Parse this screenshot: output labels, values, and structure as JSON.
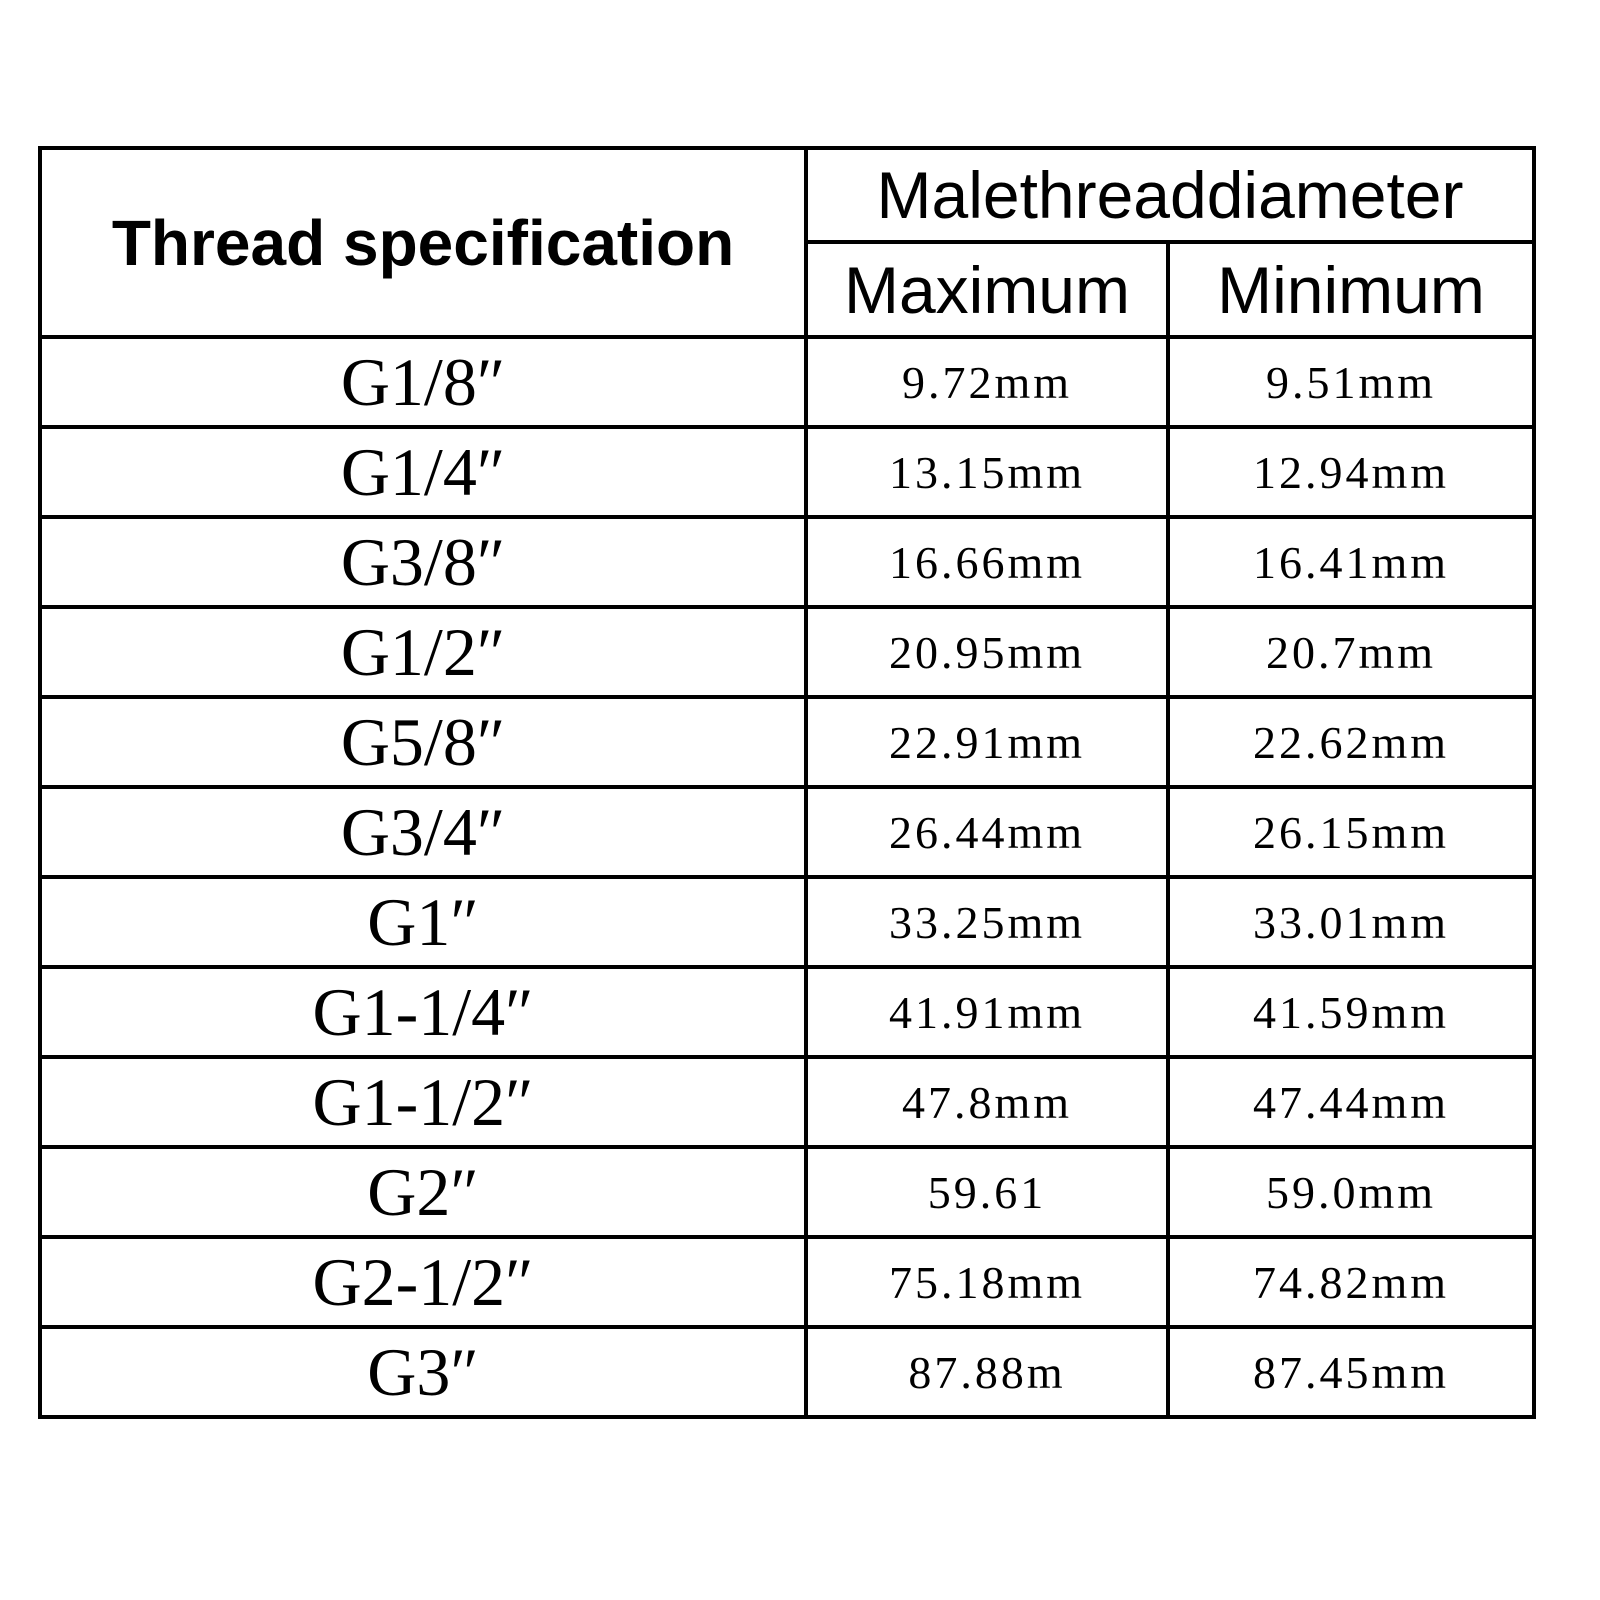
{
  "table": {
    "header": {
      "spec": "Thread specification",
      "group": "Malethreaddiameter",
      "max": "Maximum",
      "min": "Minimum"
    },
    "rows": [
      [
        "G1/8″",
        "9.72mm",
        "9.51mm"
      ],
      [
        "G1/4″",
        "13.15mm",
        "12.94mm"
      ],
      [
        "G3/8″",
        "16.66mm",
        "16.41mm"
      ],
      [
        "G1/2″",
        "20.95mm",
        "20.7mm"
      ],
      [
        "G5/8″",
        "22.91mm",
        "22.62mm"
      ],
      [
        "G3/4″",
        "26.44mm",
        "26.15mm"
      ],
      [
        "G1″",
        "33.25mm",
        "33.01mm"
      ],
      [
        "G1-1/4″",
        "41.91mm",
        "41.59mm"
      ],
      [
        "G1-1/2″",
        "47.8mm",
        "47.44mm"
      ],
      [
        "G2″",
        "59.61",
        "59.0mm"
      ],
      [
        "G2-1/2″",
        "75.18mm",
        "74.82mm"
      ],
      [
        "G3″",
        "87.88m",
        "87.45mm"
      ]
    ]
  }
}
